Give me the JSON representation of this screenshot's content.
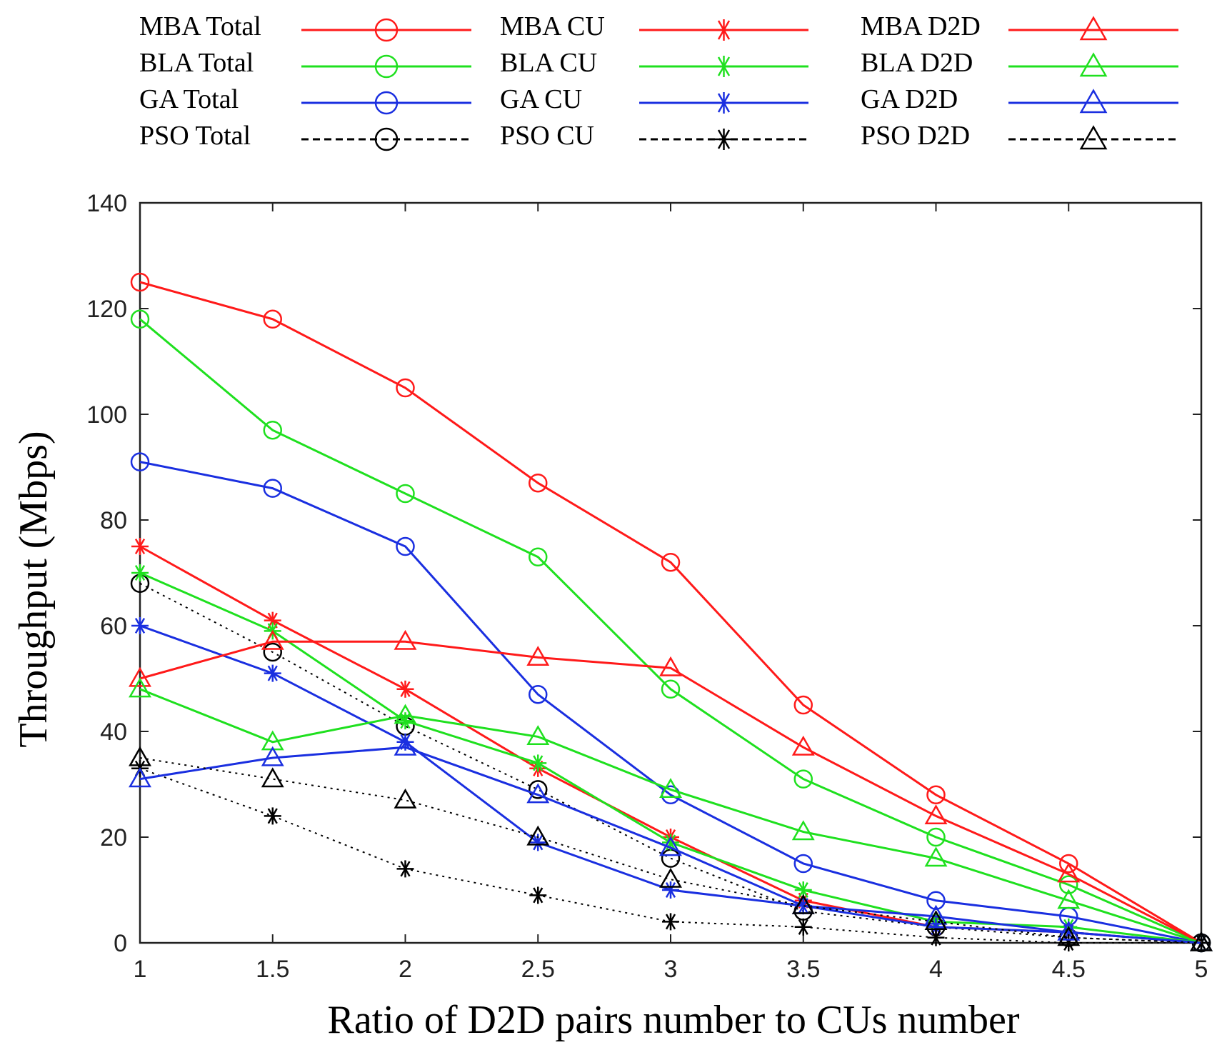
{
  "chart_data": {
    "type": "line",
    "xlabel": "Ratio of D2D pairs number to CUs number",
    "ylabel": "Throughput (Mbps)",
    "xlim": [
      1,
      5
    ],
    "ylim": [
      0,
      140
    ],
    "x": [
      1,
      1.5,
      2,
      2.5,
      3,
      3.5,
      4,
      4.5,
      5
    ],
    "x_ticks": [
      "1",
      "1.5",
      "2",
      "2.5",
      "3",
      "3.5",
      "4",
      "4.5",
      "5"
    ],
    "y_ticks": [
      "0",
      "20",
      "40",
      "60",
      "80",
      "100",
      "120",
      "140"
    ],
    "legend_position": "top",
    "grid": false,
    "series": [
      {
        "name": "MBA Total",
        "color": "#ff1a1a",
        "style": "solid",
        "marker": "circle",
        "values": [
          125,
          118,
          105,
          87,
          72,
          45,
          28,
          15,
          0
        ]
      },
      {
        "name": "BLA Total",
        "color": "#1fe01f",
        "style": "solid",
        "marker": "circle",
        "values": [
          118,
          97,
          85,
          73,
          48,
          31,
          20,
          11,
          0
        ]
      },
      {
        "name": "GA Total",
        "color": "#1a2fe0",
        "style": "solid",
        "marker": "circle",
        "values": [
          91,
          86,
          75,
          47,
          28,
          15,
          8,
          5,
          0
        ]
      },
      {
        "name": "PSO Total",
        "color": "#000000",
        "style": "dotted",
        "marker": "circle",
        "values": [
          68,
          55,
          41,
          29,
          16,
          6,
          3,
          1,
          0
        ]
      },
      {
        "name": "MBA CU",
        "color": "#ff1a1a",
        "style": "solid",
        "marker": "star",
        "values": [
          75,
          61,
          48,
          33,
          20,
          8,
          3,
          2,
          0
        ]
      },
      {
        "name": "BLA CU",
        "color": "#1fe01f",
        "style": "solid",
        "marker": "star",
        "values": [
          70,
          59,
          42,
          34,
          19,
          10,
          4,
          3,
          0
        ]
      },
      {
        "name": "GA CU",
        "color": "#1a2fe0",
        "style": "solid",
        "marker": "star",
        "values": [
          60,
          51,
          38,
          19,
          10,
          7,
          3,
          2,
          0
        ]
      },
      {
        "name": "PSO CU",
        "color": "#000000",
        "style": "dotted",
        "marker": "star",
        "values": [
          33,
          24,
          14,
          9,
          4,
          3,
          1,
          0,
          0
        ]
      },
      {
        "name": "MBA D2D",
        "color": "#ff1a1a",
        "style": "solid",
        "marker": "triangle",
        "values": [
          50,
          57,
          57,
          54,
          52,
          37,
          24,
          13,
          0
        ]
      },
      {
        "name": "BLA D2D",
        "color": "#1fe01f",
        "style": "solid",
        "marker": "triangle",
        "values": [
          48,
          38,
          43,
          39,
          29,
          21,
          16,
          8,
          0
        ]
      },
      {
        "name": "GA D2D",
        "color": "#1a2fe0",
        "style": "solid",
        "marker": "triangle",
        "values": [
          31,
          35,
          37,
          28,
          18,
          7,
          5,
          2,
          0
        ]
      },
      {
        "name": "PSO D2D",
        "color": "#000000",
        "style": "dotted",
        "marker": "triangle",
        "values": [
          35,
          31,
          27,
          20,
          12,
          7,
          4,
          1,
          0
        ]
      }
    ]
  }
}
